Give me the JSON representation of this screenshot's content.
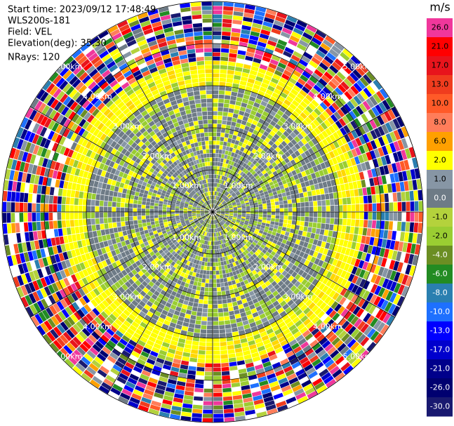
{
  "chart_data": {
    "type": "ppi",
    "info": [
      "Start time: 2023/09/12 17:48:49",
      "WLS200s-181",
      "Field: VEL",
      "Elevation(deg): 35.30",
      "NRays: 120"
    ],
    "ring_labels": [
      "1.00km",
      "2.00km",
      "3.00km",
      "4.00km",
      "5.00km"
    ],
    "colorbar": {
      "unit": "m/s",
      "labels": [
        "26.0",
        "21.0",
        "17.0",
        "13.0",
        "10.0",
        "8.0",
        "6.0",
        "2.0",
        "1.0",
        "0.0",
        "-1.0",
        "-2.0",
        "-4.0",
        "-6.0",
        "-8.0",
        "-10.0",
        "-13.0",
        "-17.0",
        "-21.0",
        "-26.0",
        "-30.0"
      ],
      "colors": [
        "#f0379b",
        "#ff0000",
        "#e8141c",
        "#f03c1e",
        "#ff5a28",
        "#ff7d5a",
        "#ffa000",
        "#ffff00",
        "#8796a5",
        "#6e7b86",
        "#b4d23c",
        "#9acd32",
        "#6b8e23",
        "#228b22",
        "#2a7fb0",
        "#1e70ff",
        "#0000ff",
        "#0000cd",
        "#00008b",
        "#000070",
        "#191970"
      ]
    }
  }
}
